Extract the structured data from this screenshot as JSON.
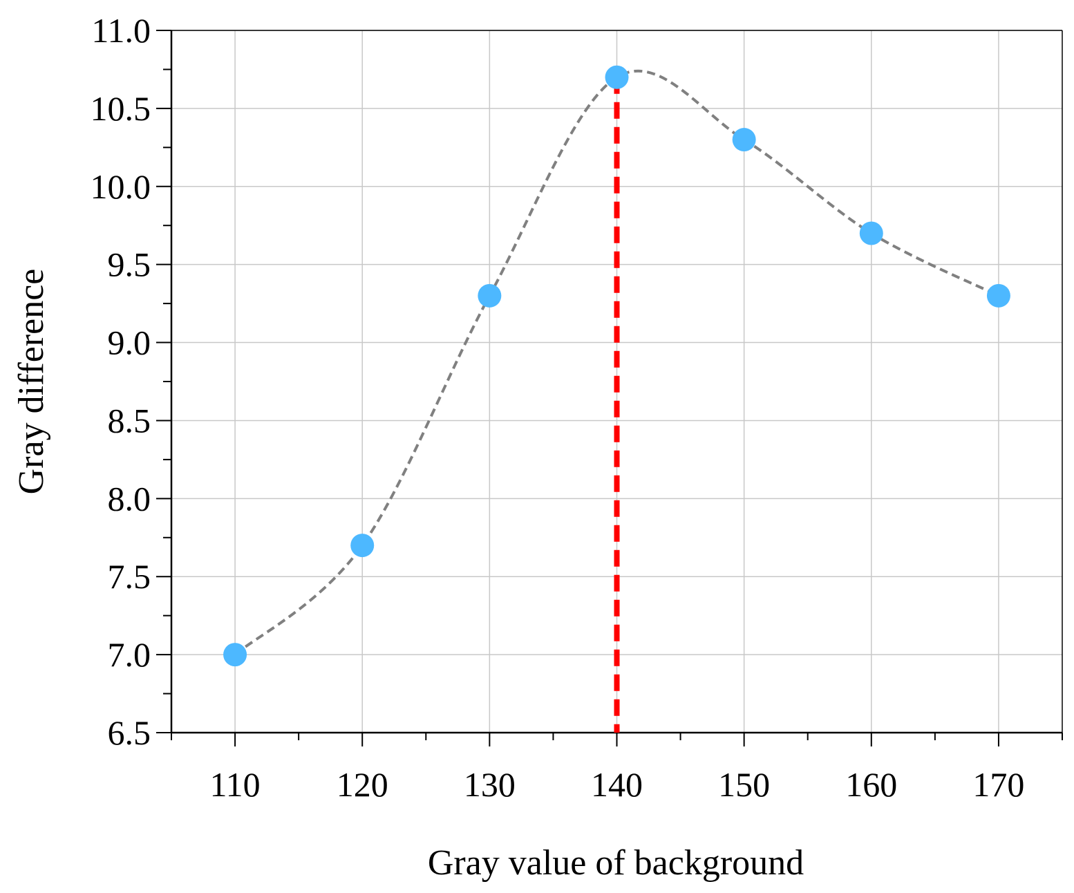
{
  "chart_data": {
    "type": "scatter",
    "title": "",
    "xlabel": "Gray value of background",
    "ylabel": "Gray difference",
    "xlim": [
      105,
      175
    ],
    "ylim": [
      6.5,
      11.0
    ],
    "x_ticks": [
      110,
      120,
      130,
      140,
      150,
      160,
      170
    ],
    "x_tick_labels": [
      "110",
      "120",
      "130",
      "140",
      "150",
      "160",
      "170"
    ],
    "y_ticks": [
      6.5,
      7.0,
      7.5,
      8.0,
      8.5,
      9.0,
      9.5,
      10.0,
      10.5,
      11.0
    ],
    "y_tick_labels": [
      "6.5",
      "7.0",
      "7.5",
      "8.0",
      "8.5",
      "9.0",
      "9.5",
      "10.0",
      "10.5",
      "11.0"
    ],
    "grid": true,
    "series": [
      {
        "name": "Gray difference",
        "x": [
          110,
          120,
          130,
          140,
          150,
          160,
          170
        ],
        "y": [
          7.0,
          7.7,
          9.3,
          10.7,
          10.3,
          9.7,
          9.3
        ],
        "color": "#4db8ff",
        "fit_line": "smooth dashed spline",
        "fit_color": "#808080"
      }
    ],
    "reference_line": {
      "x": 140,
      "color": "#ff0000",
      "style": "dashed"
    }
  }
}
